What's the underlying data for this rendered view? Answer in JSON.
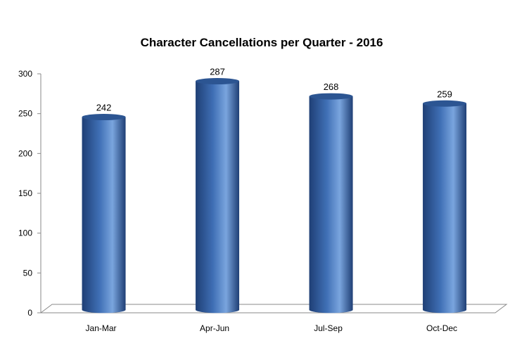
{
  "chart_data": {
    "type": "bar",
    "title": "Character Cancellations per Quarter - 2016",
    "categories": [
      "Jan-Mar",
      "Apr-Jun",
      "Jul-Sep",
      "Oct-Dec"
    ],
    "values": [
      242,
      287,
      268,
      259
    ],
    "ylim": [
      0,
      300
    ],
    "yticks": [
      0,
      50,
      100,
      150,
      200,
      250,
      300
    ],
    "grid": false,
    "legend": "none",
    "bar_style": "3d-cylinder",
    "colors": {
      "bar_main": "#3f6fb5",
      "bar_dark": "#1f3f75",
      "bar_light": "#7aa5de",
      "bar_top": "#2c5592",
      "axis": "#8a8a8a",
      "text": "#000000"
    }
  }
}
